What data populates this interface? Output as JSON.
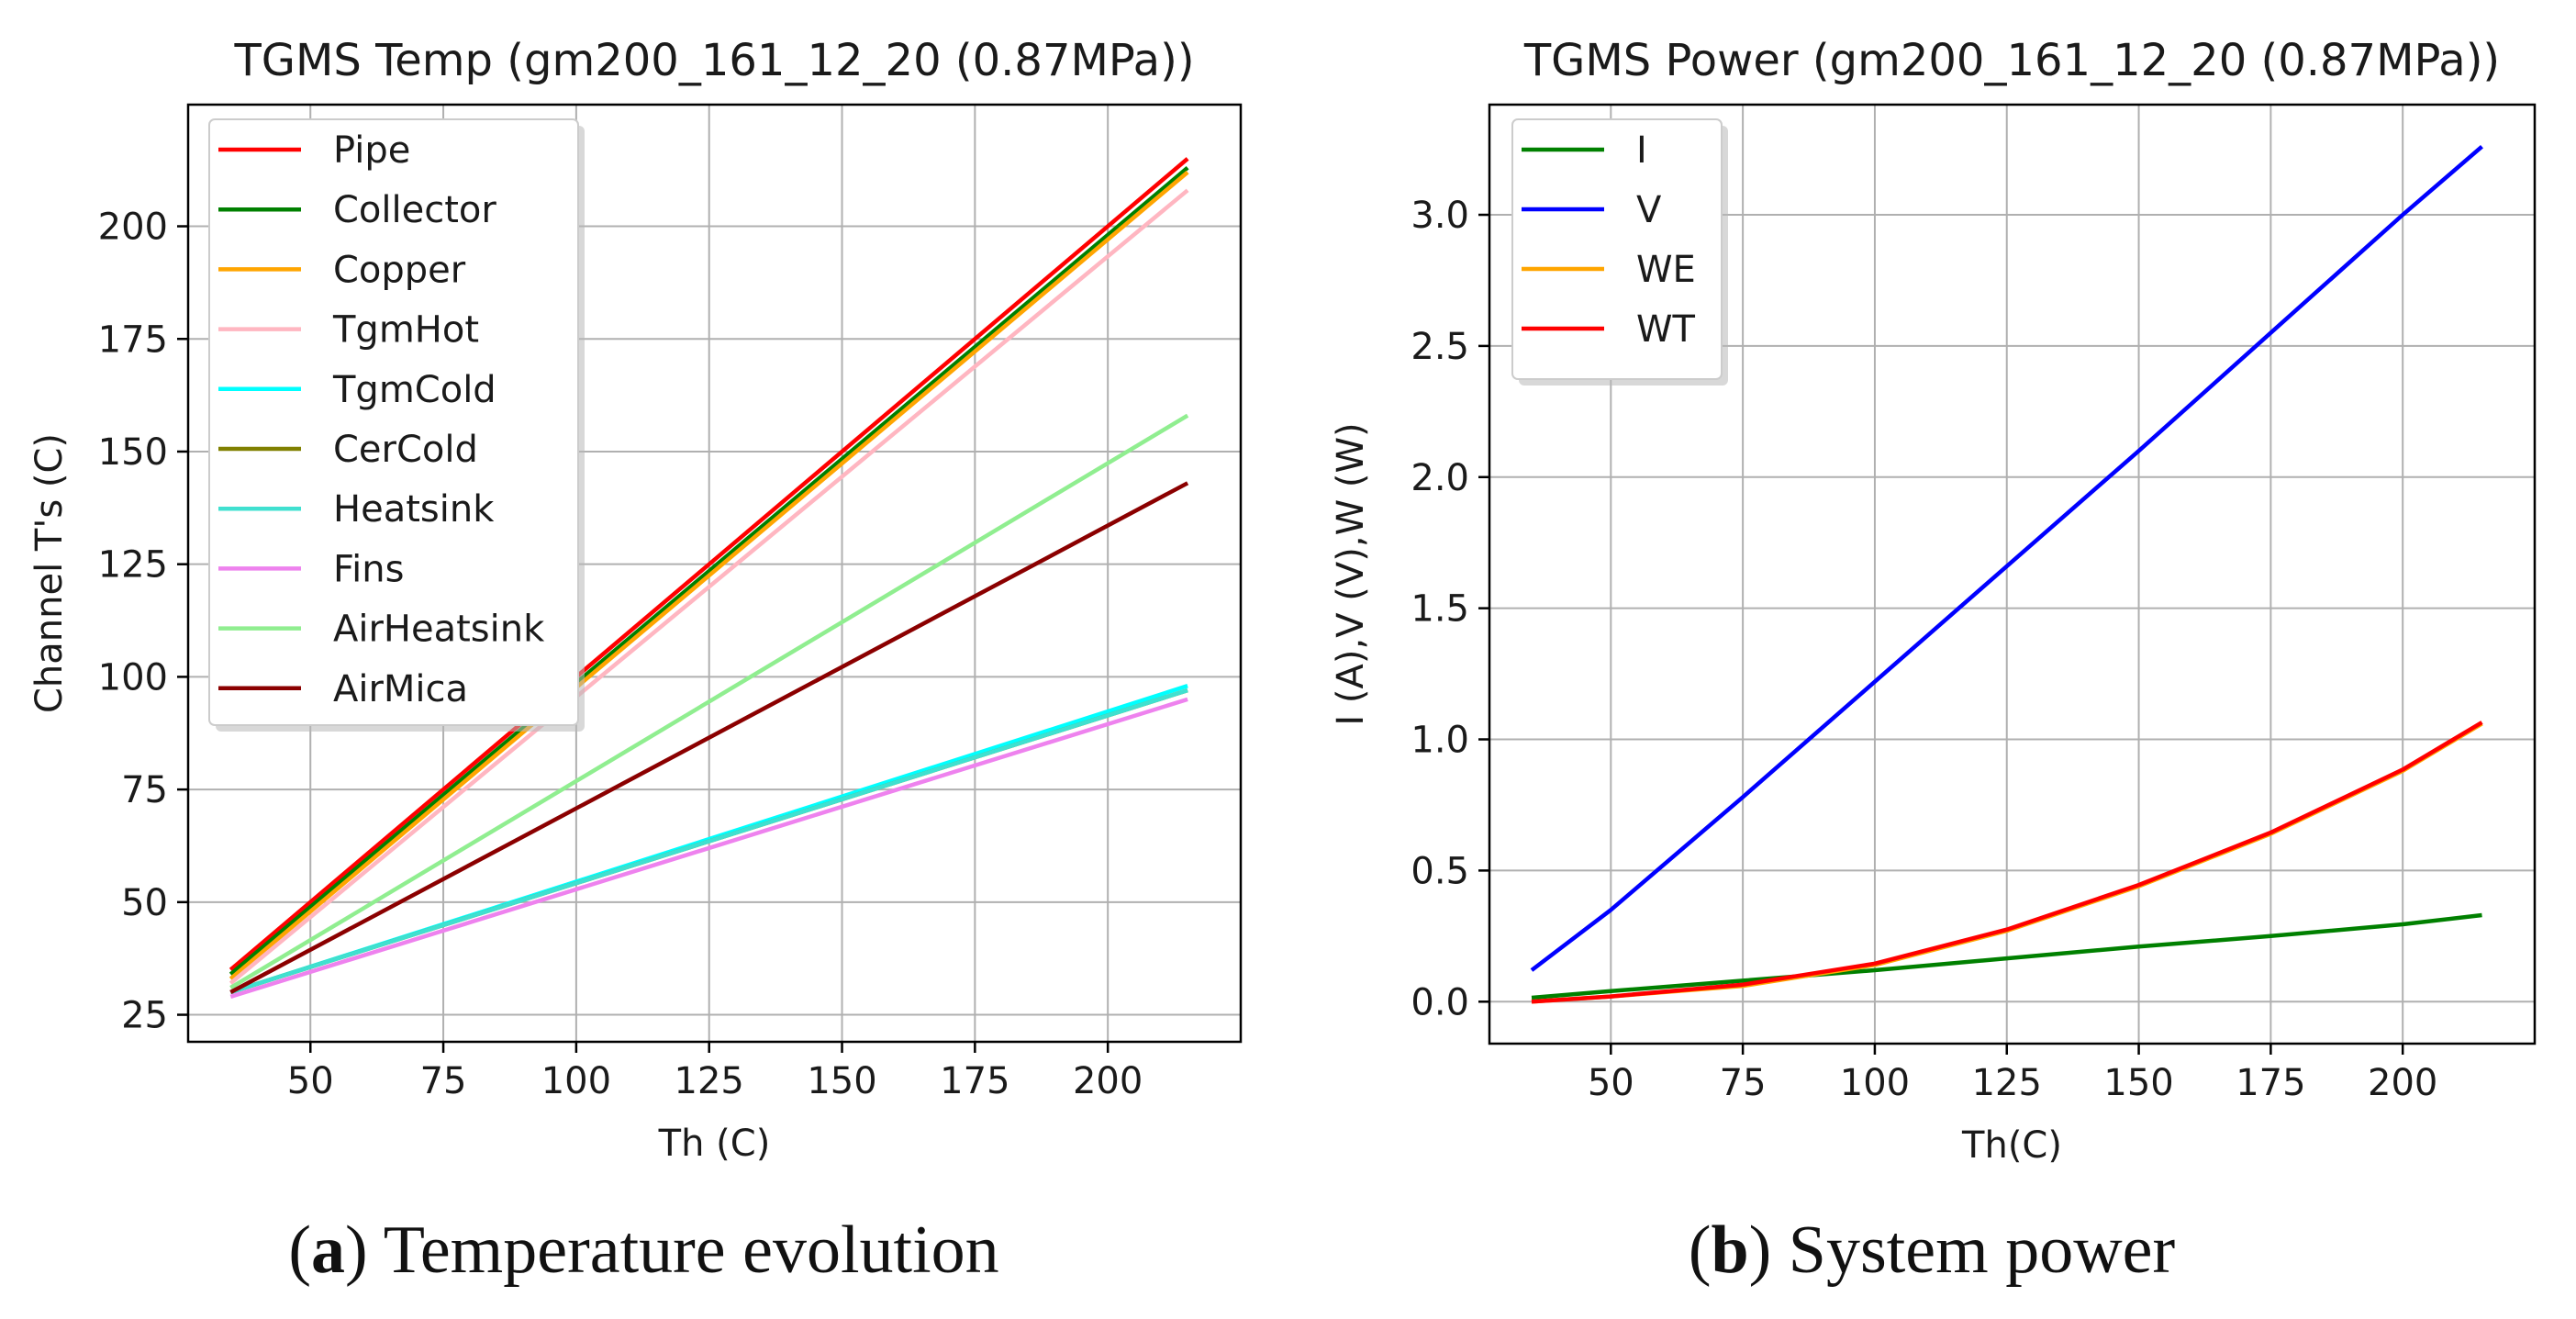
{
  "chart_data": [
    {
      "type": "line",
      "title": "TGMS Temp (gm200_161_12_20 (0.87MPa))",
      "xlabel": "Th (C)",
      "ylabel": "Channel T's (C)",
      "xlim": [
        27,
        225
      ],
      "ylim": [
        19,
        227
      ],
      "xticks": [
        50,
        75,
        100,
        125,
        150,
        175,
        200
      ],
      "yticks": [
        25,
        50,
        75,
        100,
        125,
        150,
        175,
        200
      ],
      "grid": true,
      "legend_position": "upper left",
      "series": [
        {
          "name": "Pipe",
          "color": "#ff0000",
          "x": [
            35,
            215
          ],
          "y": [
            35,
            215
          ]
        },
        {
          "name": "Collector",
          "color": "#008000",
          "x": [
            35,
            215
          ],
          "y": [
            34,
            213
          ]
        },
        {
          "name": "Copper",
          "color": "#ffa500",
          "x": [
            35,
            215
          ],
          "y": [
            33,
            212
          ]
        },
        {
          "name": "TgmHot",
          "color": "#ffb6c1",
          "x": [
            35,
            215
          ],
          "y": [
            32,
            208
          ]
        },
        {
          "name": "TgmCold",
          "color": "#00ffff",
          "x": [
            35,
            215
          ],
          "y": [
            30,
            98
          ]
        },
        {
          "name": "CerCold",
          "color": "#808000",
          "x": [
            35,
            215
          ],
          "y": [
            30,
            97
          ]
        },
        {
          "name": "Heatsink",
          "color": "#40e0d0",
          "x": [
            35,
            215
          ],
          "y": [
            30,
            97
          ]
        },
        {
          "name": "Fins",
          "color": "#ee82ee",
          "x": [
            35,
            215
          ],
          "y": [
            29,
            95
          ]
        },
        {
          "name": "AirHeatsink",
          "color": "#90ee90",
          "x": [
            35,
            215
          ],
          "y": [
            31,
            158
          ]
        },
        {
          "name": "AirMica",
          "color": "#8b0000",
          "x": [
            35,
            215
          ],
          "y": [
            30,
            143
          ]
        }
      ]
    },
    {
      "type": "line",
      "title": "TGMS Power (gm200_161_12_20 (0.87MPa))",
      "xlabel": "Th(C)",
      "ylabel": "I (A),V (V),W (W)",
      "xlim": [
        27,
        225
      ],
      "ylim": [
        -0.16,
        3.42
      ],
      "xticks": [
        50,
        75,
        100,
        125,
        150,
        175,
        200
      ],
      "yticks": [
        "0.0",
        "0.5",
        "1.0",
        "1.5",
        "2.0",
        "2.5",
        "3.0"
      ],
      "grid": true,
      "legend_position": "upper left",
      "series": [
        {
          "name": "I",
          "color": "#008000",
          "x": [
            35,
            50,
            75,
            100,
            125,
            150,
            175,
            200,
            215
          ],
          "y": [
            0.015,
            0.04,
            0.08,
            0.12,
            0.165,
            0.21,
            0.25,
            0.295,
            0.33
          ]
        },
        {
          "name": "V",
          "color": "#0000ff",
          "x": [
            35,
            50,
            75,
            100,
            125,
            150,
            175,
            200,
            215
          ],
          "y": [
            0.12,
            0.35,
            0.78,
            1.22,
            1.66,
            2.1,
            2.55,
            3.0,
            3.26
          ]
        },
        {
          "name": "WE",
          "color": "#ffa500",
          "x": [
            35,
            50,
            75,
            100,
            125,
            150,
            175,
            200,
            215
          ],
          "y": [
            0.0,
            0.02,
            0.06,
            0.14,
            0.27,
            0.44,
            0.64,
            0.88,
            1.06
          ]
        },
        {
          "name": "WT",
          "color": "#ff0000",
          "x": [
            35,
            50,
            75,
            100,
            125,
            150,
            175,
            200,
            215
          ],
          "y": [
            0.0,
            0.02,
            0.065,
            0.145,
            0.275,
            0.445,
            0.645,
            0.885,
            1.065
          ]
        }
      ]
    }
  ],
  "captions": [
    {
      "letter": "a",
      "text": " Temperature evolution"
    },
    {
      "letter": "b",
      "text": " System power"
    }
  ]
}
